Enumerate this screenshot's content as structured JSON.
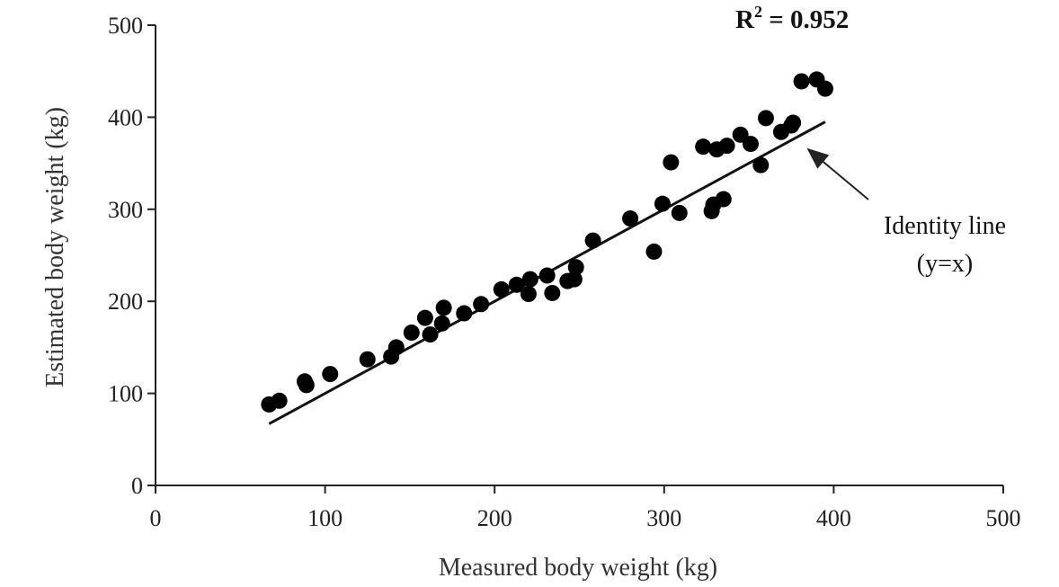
{
  "chart_data": {
    "type": "scatter",
    "title": "",
    "xlabel": "Measured body weight  (kg)",
    "ylabel": "Estimated body weight  (kg)",
    "xlim": [
      0,
      500
    ],
    "ylim": [
      0,
      500
    ],
    "xticks": [
      "0",
      "100",
      "200",
      "300",
      "400",
      "500"
    ],
    "yticks": [
      "0",
      "100",
      "200",
      "300",
      "400",
      "500"
    ],
    "grid": false,
    "r_squared": {
      "prefix": "R",
      "sup": "2",
      "suffix": " = 0.952"
    },
    "identity_line": {
      "label_line1": "Identity line",
      "label_line2": "(y=x)",
      "x_start": 67,
      "x_end": 395
    },
    "points": [
      [
        67,
        88
      ],
      [
        73,
        92
      ],
      [
        88,
        113
      ],
      [
        89,
        109
      ],
      [
        103,
        121
      ],
      [
        125,
        137
      ],
      [
        139,
        140
      ],
      [
        142,
        150
      ],
      [
        151,
        166
      ],
      [
        159,
        182
      ],
      [
        162,
        164
      ],
      [
        169,
        176
      ],
      [
        170,
        193
      ],
      [
        182,
        187
      ],
      [
        192,
        197
      ],
      [
        204,
        213
      ],
      [
        213,
        218
      ],
      [
        220,
        208
      ],
      [
        221,
        224
      ],
      [
        231,
        228
      ],
      [
        234,
        209
      ],
      [
        243,
        222
      ],
      [
        247,
        224
      ],
      [
        248,
        237
      ],
      [
        258,
        266
      ],
      [
        280,
        290
      ],
      [
        294,
        254
      ],
      [
        299,
        306
      ],
      [
        304,
        351
      ],
      [
        309,
        296
      ],
      [
        323,
        368
      ],
      [
        328,
        298
      ],
      [
        329,
        305
      ],
      [
        331,
        365
      ],
      [
        335,
        311
      ],
      [
        337,
        369
      ],
      [
        345,
        381
      ],
      [
        351,
        371
      ],
      [
        357,
        348
      ],
      [
        360,
        399
      ],
      [
        369,
        384
      ],
      [
        375,
        391
      ],
      [
        376,
        394
      ],
      [
        381,
        439
      ],
      [
        390,
        441
      ],
      [
        395,
        431
      ]
    ]
  }
}
